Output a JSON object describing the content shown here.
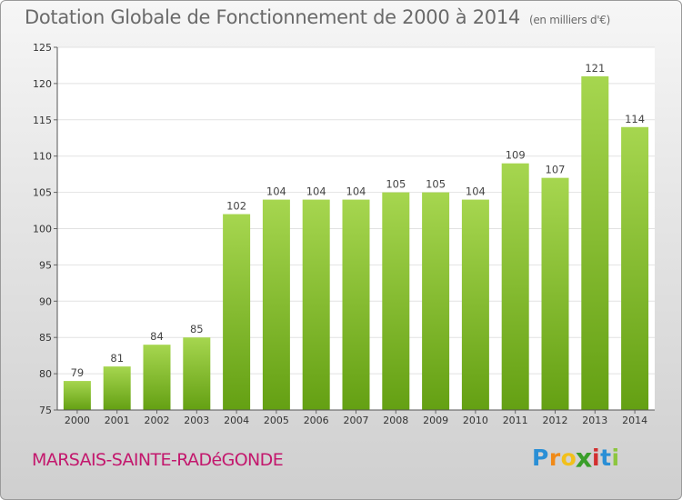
{
  "chart_data": {
    "type": "bar",
    "title": "Dotation Globale de Fonctionnement de 2000 à 2014",
    "subtitle": "(en milliers d'€)",
    "categories": [
      "2000",
      "2001",
      "2002",
      "2003",
      "2004",
      "2005",
      "2006",
      "2007",
      "2008",
      "2009",
      "2010",
      "2011",
      "2012",
      "2013",
      "2014"
    ],
    "values": [
      79,
      81,
      84,
      85,
      102,
      104,
      104,
      104,
      105,
      105,
      104,
      109,
      107,
      121,
      114
    ],
    "ylim": [
      75,
      125
    ],
    "yticks": [
      75,
      80,
      85,
      90,
      95,
      100,
      105,
      110,
      115,
      120,
      125
    ],
    "grid": true,
    "bar_color_light": "#a6d64f",
    "bar_color_dark": "#64a013"
  },
  "commune_name": "MARSAIS-SAINTE-RADéGONDE",
  "logo": {
    "letters": [
      "P",
      "r",
      "o",
      "x",
      "i",
      "t",
      "i"
    ],
    "colors": [
      "#2a8fd6",
      "#f08a18",
      "#f2c01b",
      "#3a9e2a",
      "#d22f2f",
      "#2a8fd6",
      "#8dc63f"
    ]
  }
}
